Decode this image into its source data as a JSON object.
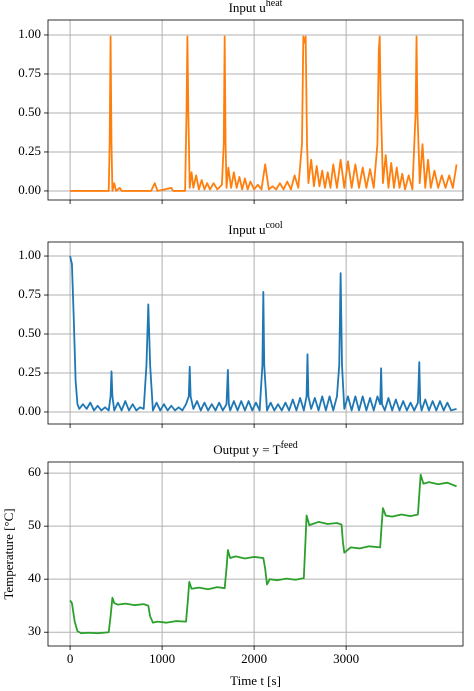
{
  "chart_data": [
    {
      "type": "line",
      "title": "Input u",
      "title_sup": "heat",
      "color": "#ff7f0e",
      "grid": true,
      "show_xtick_labels": false,
      "xlim": [
        -240,
        4270
      ],
      "ylim": [
        -0.058,
        1.096
      ],
      "xticks": [
        0,
        1000,
        2000,
        3000
      ],
      "yticks": [
        {
          "value": 0,
          "label": "0.00"
        },
        {
          "value": 0.25,
          "label": "0.25"
        },
        {
          "value": 0.5,
          "label": "0.50"
        },
        {
          "value": 0.75,
          "label": "0.75"
        },
        {
          "value": 1,
          "label": "1.00"
        }
      ],
      "x": [
        0,
        420,
        430,
        440,
        450,
        460,
        480,
        500,
        540,
        560,
        880,
        920,
        950,
        1100,
        1120,
        1250,
        1265,
        1275,
        1285,
        1300,
        1320,
        1340,
        1370,
        1400,
        1430,
        1460,
        1490,
        1520,
        1560,
        1600,
        1650,
        1670,
        1680,
        1690,
        1700,
        1720,
        1750,
        1780,
        1810,
        1840,
        1870,
        1900,
        1930,
        1960,
        2000,
        2040,
        2080,
        2120,
        2160,
        2200,
        2240,
        2280,
        2320,
        2360,
        2400,
        2440,
        2480,
        2520,
        2535,
        2545,
        2560,
        2575,
        2590,
        2620,
        2650,
        2680,
        2710,
        2740,
        2770,
        2800,
        2830,
        2860,
        2900,
        2940,
        2980,
        3020,
        3060,
        3100,
        3140,
        3180,
        3220,
        3260,
        3300,
        3340,
        3355,
        3365,
        3375,
        3400,
        3430,
        3460,
        3490,
        3520,
        3550,
        3580,
        3610,
        3640,
        3680,
        3720,
        3755,
        3765,
        3775,
        3800,
        3830,
        3860,
        3890,
        3920,
        3960,
        4000,
        4040,
        4080,
        4120,
        4160,
        4200
      ],
      "values": [
        0,
        0,
        0.3,
        0.99,
        0.3,
        0,
        0.05,
        0,
        0.02,
        0,
        0,
        0.05,
        0,
        0.02,
        0,
        0,
        0.5,
        0.99,
        0.5,
        0.02,
        0.12,
        0.02,
        0.1,
        0.01,
        0.07,
        0.01,
        0.05,
        0.01,
        0.05,
        0.01,
        0.04,
        0.3,
        0.99,
        0.3,
        0.02,
        0.15,
        0.02,
        0.12,
        0.02,
        0.09,
        0.01,
        0.08,
        0.01,
        0.06,
        0.01,
        0.04,
        0.01,
        0.17,
        0.01,
        0.03,
        0.01,
        0.05,
        0.01,
        0.06,
        0.01,
        0.1,
        0.02,
        0.3,
        0.99,
        0.95,
        0.99,
        0.3,
        0.05,
        0.2,
        0.03,
        0.16,
        0.03,
        0.13,
        0.02,
        0.12,
        0.02,
        0.17,
        0.02,
        0.2,
        0.02,
        0.19,
        0.02,
        0.17,
        0.02,
        0.15,
        0.02,
        0.14,
        0.02,
        0.3,
        0.9,
        0.99,
        0.6,
        0.05,
        0.23,
        0.02,
        0.18,
        0.02,
        0.15,
        0.02,
        0.11,
        0.01,
        0.1,
        0.01,
        0.5,
        0.99,
        0.5,
        0.05,
        0.3,
        0.02,
        0.2,
        0.02,
        0.13,
        0.02,
        0.1,
        0.02,
        0.1,
        0.02,
        0.17
      ]
    },
    {
      "type": "line",
      "title": "Input u",
      "title_sup": "cool",
      "color": "#1f77b4",
      "grid": true,
      "show_xtick_labels": false,
      "xlim": [
        -240,
        4270
      ],
      "ylim": [
        -0.077,
        1.09
      ],
      "xticks": [
        0,
        1000,
        2000,
        3000
      ],
      "yticks": [
        {
          "value": 0,
          "label": "0.00"
        },
        {
          "value": 0.25,
          "label": "0.25"
        },
        {
          "value": 0.5,
          "label": "0.50"
        },
        {
          "value": 0.75,
          "label": "0.75"
        },
        {
          "value": 1,
          "label": "1.00"
        }
      ],
      "x": [
        0,
        20,
        40,
        60,
        80,
        100,
        140,
        180,
        220,
        260,
        300,
        340,
        380,
        420,
        440,
        450,
        460,
        480,
        520,
        560,
        600,
        640,
        680,
        720,
        760,
        800,
        830,
        850,
        870,
        900,
        940,
        980,
        1020,
        1060,
        1100,
        1140,
        1180,
        1220,
        1260,
        1290,
        1300,
        1310,
        1340,
        1380,
        1420,
        1460,
        1500,
        1540,
        1580,
        1620,
        1660,
        1700,
        1715,
        1725,
        1740,
        1780,
        1820,
        1860,
        1900,
        1940,
        1980,
        2020,
        2060,
        2090,
        2100,
        2110,
        2140,
        2180,
        2220,
        2260,
        2300,
        2340,
        2380,
        2420,
        2460,
        2500,
        2540,
        2570,
        2580,
        2590,
        2620,
        2660,
        2700,
        2740,
        2780,
        2820,
        2860,
        2900,
        2925,
        2940,
        2955,
        2980,
        3020,
        3060,
        3100,
        3140,
        3180,
        3220,
        3260,
        3300,
        3340,
        3370,
        3380,
        3390,
        3420,
        3460,
        3500,
        3540,
        3580,
        3620,
        3660,
        3700,
        3740,
        3780,
        3795,
        3805,
        3820,
        3860,
        3900,
        3940,
        3980,
        4020,
        4060,
        4100,
        4140,
        4200
      ],
      "values": [
        1.0,
        0.95,
        0.6,
        0.2,
        0.05,
        0.02,
        0.05,
        0.02,
        0.06,
        0.01,
        0.04,
        0.01,
        0.03,
        0.01,
        0.1,
        0.26,
        0.1,
        0.01,
        0.06,
        0.01,
        0.07,
        0.01,
        0.05,
        0.01,
        0.03,
        0.02,
        0.3,
        0.69,
        0.3,
        0.01,
        0.06,
        0.01,
        0.05,
        0.01,
        0.04,
        0.01,
        0.03,
        0.01,
        0.05,
        0.1,
        0.29,
        0.1,
        0.02,
        0.07,
        0.01,
        0.06,
        0.01,
        0.05,
        0.01,
        0.06,
        0.01,
        0.05,
        0.27,
        0.05,
        0.01,
        0.07,
        0.01,
        0.07,
        0.01,
        0.07,
        0.01,
        0.06,
        0.01,
        0.3,
        0.77,
        0.3,
        0.01,
        0.06,
        0.01,
        0.05,
        0.01,
        0.06,
        0.01,
        0.08,
        0.01,
        0.09,
        0.01,
        0.1,
        0.37,
        0.1,
        0.02,
        0.09,
        0.01,
        0.1,
        0.01,
        0.1,
        0.01,
        0.1,
        0.3,
        0.89,
        0.3,
        0.02,
        0.1,
        0.01,
        0.1,
        0.01,
        0.1,
        0.01,
        0.09,
        0.01,
        0.1,
        0.05,
        0.28,
        0.05,
        0.01,
        0.09,
        0.01,
        0.08,
        0.01,
        0.07,
        0.01,
        0.06,
        0.01,
        0.06,
        0.32,
        0.06,
        0.01,
        0.08,
        0.01,
        0.07,
        0.01,
        0.07,
        0.01,
        0.06,
        0.01,
        0.02
      ]
    },
    {
      "type": "line",
      "title": "Output y = T",
      "title_sup": "feed",
      "color": "#2ca02c",
      "grid": true,
      "show_xtick_labels": true,
      "xlabel": "Time t [s]",
      "ylabel": "Temperature [°C]",
      "xlim": [
        -240,
        4270
      ],
      "ylim": [
        27.4,
        62.1
      ],
      "xticks": [
        0,
        1000,
        2000,
        3000
      ],
      "yticks": [
        30,
        40,
        50,
        60
      ],
      "x": [
        0,
        20,
        50,
        80,
        120,
        200,
        300,
        420,
        440,
        460,
        480,
        520,
        600,
        700,
        800,
        850,
        870,
        900,
        950,
        1050,
        1150,
        1260,
        1280,
        1295,
        1320,
        1400,
        1500,
        1600,
        1680,
        1700,
        1715,
        1740,
        1800,
        1900,
        2000,
        2100,
        2120,
        2140,
        2170,
        2250,
        2350,
        2450,
        2540,
        2555,
        2570,
        2600,
        2700,
        2800,
        2900,
        2950,
        2965,
        2980,
        3050,
        3150,
        3250,
        3370,
        3385,
        3400,
        3430,
        3500,
        3600,
        3700,
        3780,
        3795,
        3810,
        3840,
        3900,
        4000,
        4100,
        4200
      ],
      "values": [
        36,
        35.5,
        32,
        30.2,
        29.8,
        29.9,
        29.8,
        30,
        33,
        36.5,
        35.5,
        35.2,
        35.4,
        35.1,
        35.3,
        35,
        33,
        31.8,
        32,
        31.8,
        32.1,
        32,
        36,
        39.5,
        38.2,
        38.4,
        38.1,
        38.5,
        38.3,
        42,
        45.5,
        44,
        44.3,
        43.9,
        44.2,
        44,
        42,
        39,
        40,
        39.8,
        40.1,
        39.9,
        40.2,
        46,
        52,
        50.2,
        50.8,
        50.4,
        50.6,
        50.3,
        47,
        45,
        46,
        45.8,
        46.2,
        46,
        50,
        53.4,
        52,
        51.8,
        52.2,
        51.9,
        52.2,
        56,
        59.7,
        58,
        58.3,
        57.9,
        58.2,
        57.5
      ]
    }
  ]
}
